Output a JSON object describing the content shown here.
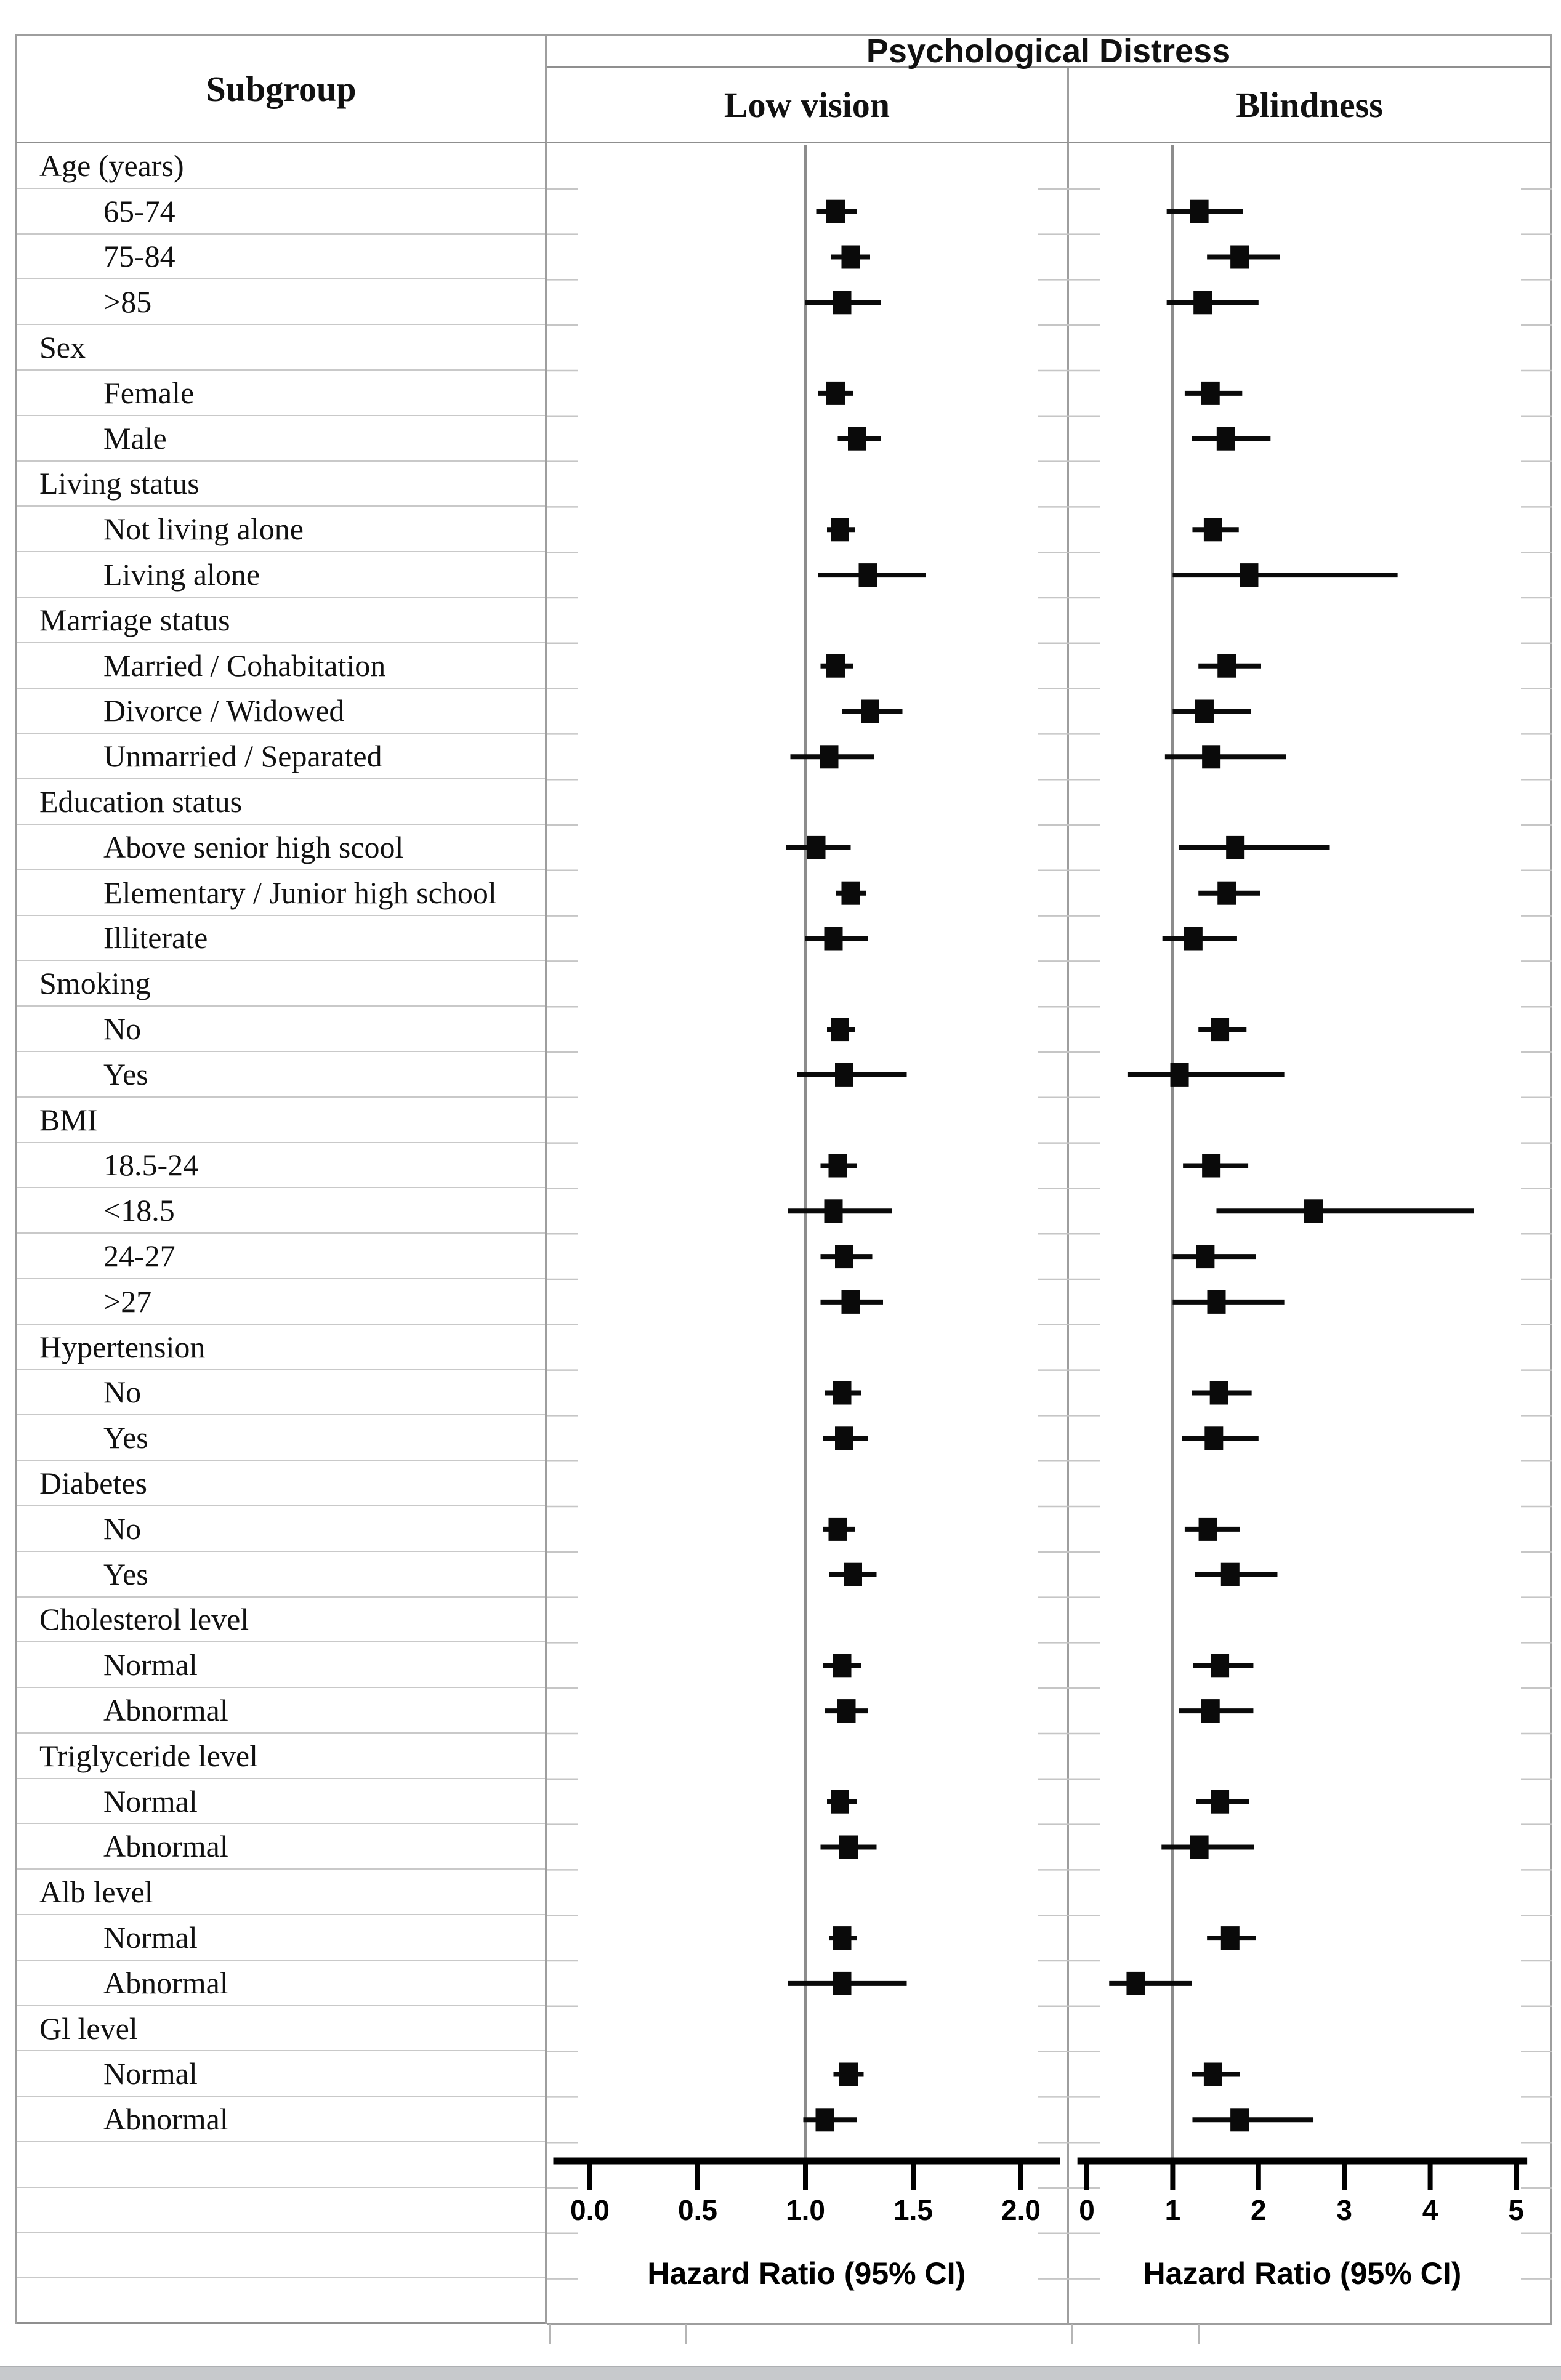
{
  "figure": {
    "subgroup_header": "Subgroup",
    "title": "Psychological Distress"
  },
  "chart_data": {
    "type": "forest",
    "title": "Psychological Distress",
    "xlabel": "Hazard Ratio (95% CI)",
    "legend": "none",
    "grid": "table-rows-light",
    "marker": "black-square-with-ci-line",
    "panels": [
      {
        "id": "lv",
        "name": "Low vision",
        "xlabel": "Hazard Ratio (95% CI)",
        "tick_labels": [
          "0.0",
          "0.5",
          "1.0",
          "1.5",
          "2.0"
        ],
        "tick_values": [
          0,
          0.5,
          1.0,
          1.5,
          2.0
        ],
        "refline": 1.0,
        "axis_range": [
          -0.17,
          2.18
        ]
      },
      {
        "id": "bl",
        "name": "Blindness",
        "xlabel": "Hazard Ratio (95% CI)",
        "tick_labels": [
          "0",
          "1",
          "2",
          "3",
          "4",
          "5"
        ],
        "tick_values": [
          0,
          1,
          2,
          3,
          4,
          5
        ],
        "refline": 1.0,
        "axis_range": [
          -0.11,
          5.13
        ]
      }
    ],
    "rows": [
      {
        "label": "Age (years)",
        "type": "header"
      },
      {
        "label": "65-74",
        "type": "item",
        "lv": {
          "hr": 1.14,
          "lo": 1.05,
          "hi": 1.24
        },
        "bl": {
          "hr": 1.31,
          "lo": 0.93,
          "hi": 1.82
        }
      },
      {
        "label": "75-84",
        "type": "item",
        "lv": {
          "hr": 1.21,
          "lo": 1.12,
          "hi": 1.3
        },
        "bl": {
          "hr": 1.78,
          "lo": 1.4,
          "hi": 2.25
        }
      },
      {
        "label": ">85",
        "type": "item",
        "lv": {
          "hr": 1.17,
          "lo": 1.0,
          "hi": 1.35
        },
        "bl": {
          "hr": 1.35,
          "lo": 0.93,
          "hi": 2.0
        }
      },
      {
        "label": "Sex",
        "type": "header"
      },
      {
        "label": "Female",
        "type": "item",
        "lv": {
          "hr": 1.14,
          "lo": 1.06,
          "hi": 1.22
        },
        "bl": {
          "hr": 1.44,
          "lo": 1.14,
          "hi": 1.81
        }
      },
      {
        "label": "Male",
        "type": "item",
        "lv": {
          "hr": 1.24,
          "lo": 1.15,
          "hi": 1.35
        },
        "bl": {
          "hr": 1.62,
          "lo": 1.22,
          "hi": 2.14
        }
      },
      {
        "label": "Living status",
        "type": "header"
      },
      {
        "label": "Not living alone",
        "type": "item",
        "lv": {
          "hr": 1.16,
          "lo": 1.1,
          "hi": 1.23
        },
        "bl": {
          "hr": 1.47,
          "lo": 1.23,
          "hi": 1.77
        }
      },
      {
        "label": "Living alone",
        "type": "item",
        "lv": {
          "hr": 1.29,
          "lo": 1.06,
          "hi": 1.56
        },
        "bl": {
          "hr": 1.89,
          "lo": 1.0,
          "hi": 3.62
        }
      },
      {
        "label": "Marriage status",
        "type": "header"
      },
      {
        "label": "Married / Cohabitation",
        "type": "item",
        "lv": {
          "hr": 1.14,
          "lo": 1.07,
          "hi": 1.22
        },
        "bl": {
          "hr": 1.63,
          "lo": 1.3,
          "hi": 2.03
        }
      },
      {
        "label": "Divorce / Widowed",
        "type": "item",
        "lv": {
          "hr": 1.3,
          "lo": 1.17,
          "hi": 1.45
        },
        "bl": {
          "hr": 1.37,
          "lo": 1.0,
          "hi": 1.91
        }
      },
      {
        "label": "Unmarried / Separated",
        "type": "item",
        "lv": {
          "hr": 1.11,
          "lo": 0.93,
          "hi": 1.32
        },
        "bl": {
          "hr": 1.45,
          "lo": 0.91,
          "hi": 2.32
        }
      },
      {
        "label": "Education status",
        "type": "header"
      },
      {
        "label": "Above senior high scool",
        "type": "item",
        "lv": {
          "hr": 1.05,
          "lo": 0.91,
          "hi": 1.21
        },
        "bl": {
          "hr": 1.73,
          "lo": 1.07,
          "hi": 2.83
        }
      },
      {
        "label": "Elementary / Junior high school",
        "type": "item",
        "lv": {
          "hr": 1.21,
          "lo": 1.14,
          "hi": 1.28
        },
        "bl": {
          "hr": 1.63,
          "lo": 1.3,
          "hi": 2.02
        }
      },
      {
        "label": "Illiterate",
        "type": "item",
        "lv": {
          "hr": 1.13,
          "lo": 1.0,
          "hi": 1.29
        },
        "bl": {
          "hr": 1.24,
          "lo": 0.88,
          "hi": 1.75
        }
      },
      {
        "label": "Smoking",
        "type": "header"
      },
      {
        "label": "No",
        "type": "item",
        "lv": {
          "hr": 1.16,
          "lo": 1.1,
          "hi": 1.23
        },
        "bl": {
          "hr": 1.55,
          "lo": 1.3,
          "hi": 1.86
        }
      },
      {
        "label": "Yes",
        "type": "item",
        "lv": {
          "hr": 1.18,
          "lo": 0.96,
          "hi": 1.47
        },
        "bl": {
          "hr": 1.08,
          "lo": 0.48,
          "hi": 2.3
        }
      },
      {
        "label": "BMI",
        "type": "header"
      },
      {
        "label": "18.5-24",
        "type": "item",
        "lv": {
          "hr": 1.15,
          "lo": 1.07,
          "hi": 1.24
        },
        "bl": {
          "hr": 1.45,
          "lo": 1.12,
          "hi": 1.88
        }
      },
      {
        "label": "<18.5",
        "type": "item",
        "lv": {
          "hr": 1.13,
          "lo": 0.92,
          "hi": 1.4
        },
        "bl": {
          "hr": 2.64,
          "lo": 1.51,
          "hi": 4.51
        }
      },
      {
        "label": "24-27",
        "type": "item",
        "lv": {
          "hr": 1.18,
          "lo": 1.07,
          "hi": 1.31
        },
        "bl": {
          "hr": 1.38,
          "lo": 1.0,
          "hi": 1.97
        }
      },
      {
        "label": ">27",
        "type": "item",
        "lv": {
          "hr": 1.21,
          "lo": 1.07,
          "hi": 1.36
        },
        "bl": {
          "hr": 1.51,
          "lo": 1.0,
          "hi": 2.3
        }
      },
      {
        "label": "Hypertension",
        "type": "header"
      },
      {
        "label": "No",
        "type": "item",
        "lv": {
          "hr": 1.17,
          "lo": 1.09,
          "hi": 1.26
        },
        "bl": {
          "hr": 1.54,
          "lo": 1.22,
          "hi": 1.92
        }
      },
      {
        "label": "Yes",
        "type": "item",
        "lv": {
          "hr": 1.18,
          "lo": 1.08,
          "hi": 1.29
        },
        "bl": {
          "hr": 1.48,
          "lo": 1.11,
          "hi": 2.0
        }
      },
      {
        "label": "Diabetes",
        "type": "header"
      },
      {
        "label": "No",
        "type": "item",
        "lv": {
          "hr": 1.15,
          "lo": 1.08,
          "hi": 1.23
        },
        "bl": {
          "hr": 1.41,
          "lo": 1.14,
          "hi": 1.78
        }
      },
      {
        "label": "Yes",
        "type": "item",
        "lv": {
          "hr": 1.22,
          "lo": 1.11,
          "hi": 1.33
        },
        "bl": {
          "hr": 1.67,
          "lo": 1.26,
          "hi": 2.22
        }
      },
      {
        "label": "Cholesterol level",
        "type": "header"
      },
      {
        "label": "Normal",
        "type": "item",
        "lv": {
          "hr": 1.17,
          "lo": 1.08,
          "hi": 1.26
        },
        "bl": {
          "hr": 1.55,
          "lo": 1.24,
          "hi": 1.94
        }
      },
      {
        "label": "Abnormal",
        "type": "item",
        "lv": {
          "hr": 1.19,
          "lo": 1.09,
          "hi": 1.29
        },
        "bl": {
          "hr": 1.44,
          "lo": 1.07,
          "hi": 1.94
        }
      },
      {
        "label": "Triglyceride level",
        "type": "header"
      },
      {
        "label": "Normal",
        "type": "item",
        "lv": {
          "hr": 1.16,
          "lo": 1.1,
          "hi": 1.24
        },
        "bl": {
          "hr": 1.55,
          "lo": 1.27,
          "hi": 1.89
        }
      },
      {
        "label": "Abnormal",
        "type": "item",
        "lv": {
          "hr": 1.2,
          "lo": 1.07,
          "hi": 1.33
        },
        "bl": {
          "hr": 1.31,
          "lo": 0.87,
          "hi": 1.95
        }
      },
      {
        "label": "Alb level",
        "type": "header"
      },
      {
        "label": "Normal",
        "type": "item",
        "lv": {
          "hr": 1.17,
          "lo": 1.11,
          "hi": 1.24
        },
        "bl": {
          "hr": 1.67,
          "lo": 1.4,
          "hi": 1.97
        }
      },
      {
        "label": "Abnormal",
        "type": "item",
        "lv": {
          "hr": 1.17,
          "lo": 0.92,
          "hi": 1.47
        },
        "bl": {
          "hr": 0.57,
          "lo": 0.26,
          "hi": 1.22
        }
      },
      {
        "label": "Gl level",
        "type": "header"
      },
      {
        "label": "Normal",
        "type": "item",
        "lv": {
          "hr": 1.2,
          "lo": 1.13,
          "hi": 1.27
        },
        "bl": {
          "hr": 1.47,
          "lo": 1.22,
          "hi": 1.78
        }
      },
      {
        "label": "Abnormal",
        "type": "item",
        "lv": {
          "hr": 1.09,
          "lo": 0.99,
          "hi": 1.24
        },
        "bl": {
          "hr": 1.78,
          "lo": 1.23,
          "hi": 2.64
        }
      }
    ]
  }
}
